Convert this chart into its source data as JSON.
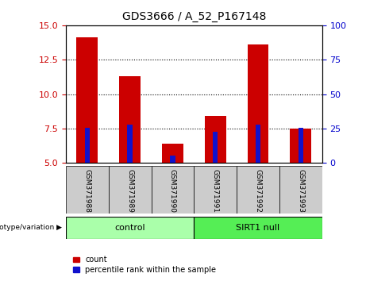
{
  "title": "GDS3666 / A_52_P167148",
  "samples": [
    "GSM371988",
    "GSM371989",
    "GSM371990",
    "GSM371991",
    "GSM371992",
    "GSM371993"
  ],
  "count_values": [
    14.1,
    11.3,
    6.4,
    8.4,
    13.6,
    7.5
  ],
  "percentile_values": [
    7.55,
    7.8,
    5.55,
    7.25,
    7.8,
    7.55
  ],
  "ylim": [
    5,
    15
  ],
  "yticks": [
    5,
    7.5,
    10,
    12.5,
    15
  ],
  "y2lim": [
    0,
    100
  ],
  "y2ticks": [
    0,
    25,
    50,
    75,
    100
  ],
  "bar_color_red": "#cc0000",
  "bar_color_blue": "#1111cc",
  "bar_width": 0.5,
  "blue_bar_width": 0.12,
  "groups": [
    {
      "label": "control",
      "indices": [
        0,
        1,
        2
      ],
      "color": "#aaffaa"
    },
    {
      "label": "SIRT1 null",
      "indices": [
        3,
        4,
        5
      ],
      "color": "#55ee55"
    }
  ],
  "group_label_prefix": "genotype/variation",
  "legend_count": "count",
  "legend_pct": "percentile rank within the sample",
  "tick_color_left": "#cc0000",
  "tick_color_right": "#0000cc",
  "bg_xticklabels": "#cccccc",
  "grid_color": "#000000"
}
